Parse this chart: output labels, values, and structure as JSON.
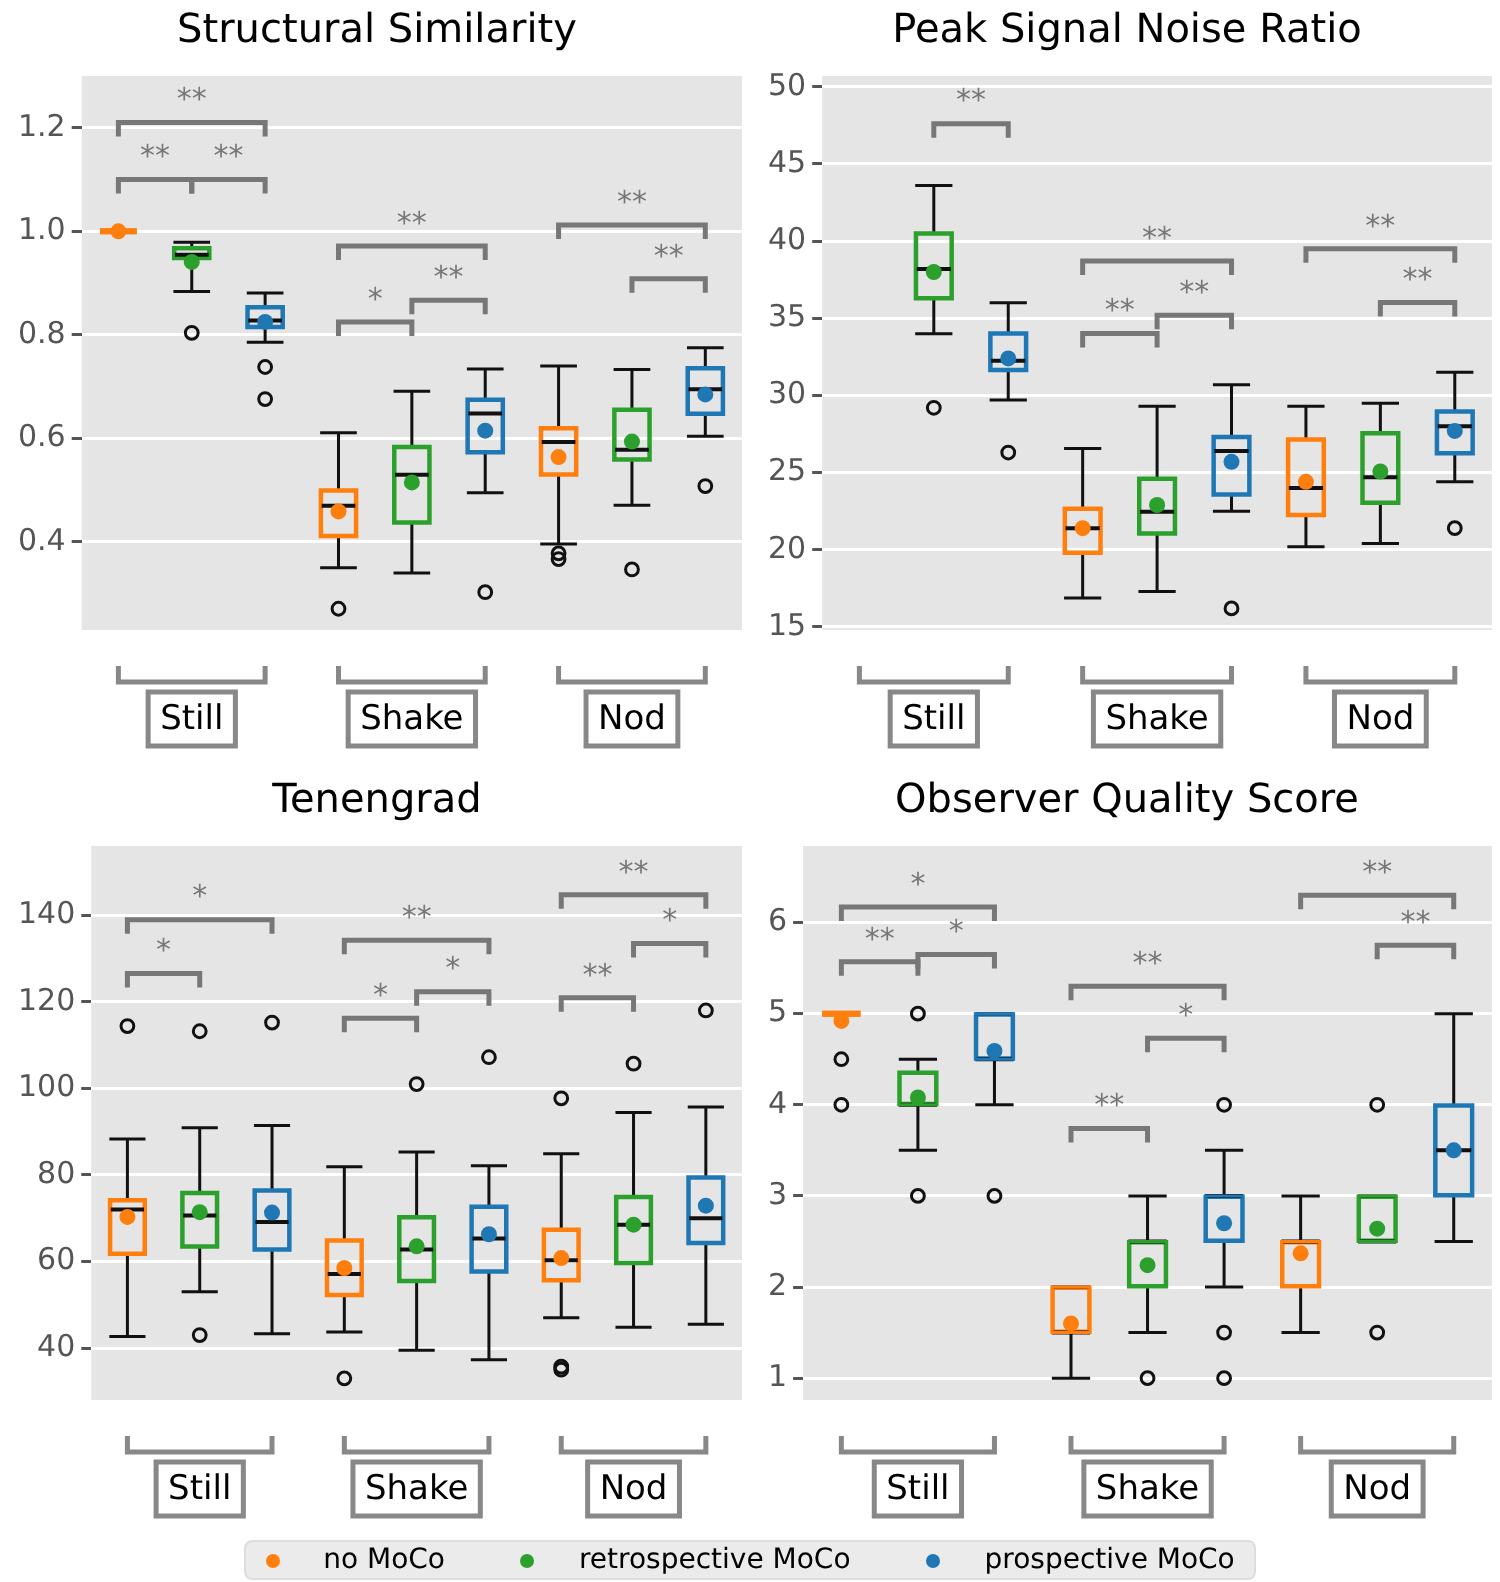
{
  "chart_data": [
    {
      "type": "box",
      "title": "Structural Similarity",
      "categories": [
        "Still",
        "Shake",
        "Nod"
      ],
      "ylim": [
        0.23,
        1.3
      ],
      "yticks": [
        {
          "value": 0.4,
          "label": "0.4"
        },
        {
          "value": 0.6,
          "label": "0.6"
        },
        {
          "value": 0.8,
          "label": "0.8"
        },
        {
          "value": 1.0,
          "label": "1.0"
        },
        {
          "value": 1.2,
          "label": "1.2"
        }
      ],
      "grid": "y",
      "series": [
        {
          "color": "#ff7f0e",
          "boxes": [
            {
              "low": 1.0,
              "q1": 1.0,
              "median": 1.0,
              "q3": 1.0,
              "high": 1.0,
              "mean": 1.0
            },
            {
              "low": 0.35,
              "q1": 0.41,
              "median": 0.47,
              "q3": 0.501,
              "high": 0.611,
              "mean": 0.459,
              "outliers": [
                0.271
              ]
            },
            {
              "low": 0.396,
              "q1": 0.529,
              "median": 0.593,
              "q3": 0.621,
              "high": 0.74,
              "mean": 0.564,
              "outliers": [
                0.378,
                0.367
              ]
            }
          ]
        },
        {
          "color": "#2ca02c",
          "boxes": [
            {
              "low": 0.884,
              "q1": 0.947,
              "median": 0.955,
              "q3": 0.969,
              "high": 0.979,
              "mean": 0.941,
              "outliers": [
                0.804
              ]
            },
            {
              "low": 0.34,
              "q1": 0.436,
              "median": 0.53,
              "q3": 0.585,
              "high": 0.691,
              "mean": 0.515
            },
            {
              "low": 0.471,
              "q1": 0.558,
              "median": 0.578,
              "q3": 0.657,
              "high": 0.733,
              "mean": 0.594,
              "outliers": [
                0.347
              ]
            }
          ]
        },
        {
          "color": "#1f77b4",
          "boxes": [
            {
              "low": 0.786,
              "q1": 0.814,
              "median": 0.828,
              "q3": 0.855,
              "high": 0.881,
              "mean": 0.825,
              "outliers": [
                0.738,
                0.676
              ]
            },
            {
              "low": 0.495,
              "q1": 0.572,
              "median": 0.648,
              "q3": 0.676,
              "high": 0.734,
              "mean": 0.615,
              "outliers": [
                0.303
              ]
            },
            {
              "low": 0.604,
              "q1": 0.646,
              "median": 0.695,
              "q3": 0.737,
              "high": 0.775,
              "mean": 0.685,
              "outliers": [
                0.508
              ]
            }
          ]
        }
      ],
      "annotations": [
        "**",
        "**",
        "**",
        "**",
        "*",
        "**",
        "**",
        "**"
      ]
    },
    {
      "type": "box",
      "title": "Peak Signal Noise Ratio",
      "categories": [
        "Still",
        "Shake",
        "Nod"
      ],
      "ylim": [
        14.8,
        50.7
      ],
      "yticks": [
        15,
        20,
        25,
        30,
        35,
        40,
        45,
        50
      ],
      "grid": "y",
      "series": [
        {
          "color": "#ff7f0e",
          "boxes": [
            null,
            {
              "low": 16.87,
              "q1": 19.76,
              "median": 21.4,
              "q3": 22.7,
              "high": 26.56,
              "mean": 21.4
            },
            {
              "low": 20.2,
              "q1": 22.2,
              "median": 24.0,
              "q3": 27.2,
              "high": 29.3,
              "mean": 24.4
            }
          ]
        },
        {
          "color": "#2ca02c",
          "boxes": [
            {
              "low": 34.0,
              "q1": 36.25,
              "median": 38.2,
              "q3": 40.54,
              "high": 43.6,
              "mean": 38.0,
              "outliers": [
                29.2
              ]
            },
            {
              "low": 17.3,
              "q1": 21.0,
              "median": 22.46,
              "q3": 24.65,
              "high": 29.3,
              "mean": 22.9
            },
            {
              "low": 20.4,
              "q1": 23.0,
              "median": 24.7,
              "q3": 27.6,
              "high": 29.5,
              "mean": 25.07
            }
          ]
        },
        {
          "color": "#1f77b4",
          "boxes": [
            {
              "low": 29.7,
              "q1": 31.6,
              "median": 32.25,
              "q3": 34.06,
              "high": 36.0,
              "mean": 32.4,
              "outliers": [
                26.3
              ]
            },
            {
              "low": 22.5,
              "q1": 23.53,
              "median": 26.4,
              "q3": 27.35,
              "high": 30.7,
              "mean": 25.7,
              "outliers": [
                16.2
              ]
            },
            {
              "low": 24.4,
              "q1": 26.2,
              "median": 28.0,
              "q3": 29.0,
              "high": 31.5,
              "mean": 27.7,
              "outliers": [
                21.4
              ]
            }
          ]
        }
      ],
      "annotations": [
        "**",
        "**",
        "**",
        "**",
        "**",
        "**"
      ]
    },
    {
      "type": "box",
      "title": "Tenengrad",
      "categories": [
        "Still",
        "Shake",
        "Nod"
      ],
      "ylim": [
        28,
        156
      ],
      "yticks": [
        40,
        60,
        80,
        100,
        120,
        140
      ],
      "grid": "y",
      "series": [
        {
          "color": "#ff7f0e",
          "boxes": [
            {
              "low": 42.7,
              "q1": 61.6,
              "median": 72.0,
              "q3": 74.3,
              "high": 88.3,
              "mean": 70.3,
              "outliers": [
                114.4
              ]
            },
            {
              "low": 43.7,
              "q1": 52.1,
              "median": 57.1,
              "q3": 65.0,
              "high": 81.9,
              "mean": 58.5,
              "outliers": [
                33.0
              ]
            },
            {
              "low": 47.0,
              "q1": 55.5,
              "median": 60.3,
              "q3": 67.5,
              "high": 84.9,
              "mean": 60.8,
              "outliers": [
                97.7,
                35.7,
                35.0
              ]
            }
          ]
        },
        {
          "color": "#2ca02c",
          "boxes": [
            {
              "low": 53.0,
              "q1": 63.3,
              "median": 70.6,
              "q3": 76.0,
              "high": 90.9,
              "mean": 71.4,
              "outliers": [
                113.2,
                43.0
              ]
            },
            {
              "low": 39.5,
              "q1": 55.3,
              "median": 62.8,
              "q3": 70.4,
              "high": 85.3,
              "mean": 63.5,
              "outliers": [
                101
              ]
            },
            {
              "low": 44.8,
              "q1": 59.5,
              "median": 68.5,
              "q3": 75.1,
              "high": 94.4,
              "mean": 68.5,
              "outliers": [
                105.7
              ]
            }
          ]
        },
        {
          "color": "#1f77b4",
          "boxes": [
            {
              "low": 43.3,
              "q1": 62.6,
              "median": 69.1,
              "q3": 76.6,
              "high": 91.4,
              "mean": 71.3,
              "outliers": [
                115.2
              ]
            },
            {
              "low": 37.3,
              "q1": 57.5,
              "median": 65.3,
              "q3": 72.8,
              "high": 82.1,
              "mean": 66.3,
              "outliers": [
                107.2
              ]
            },
            {
              "low": 45.5,
              "q1": 64.1,
              "median": 70.0,
              "q3": 79.6,
              "high": 95.7,
              "mean": 72.9,
              "outliers": [
                118.0
              ]
            }
          ]
        }
      ],
      "annotations": [
        "*",
        "*",
        "**",
        "*",
        "*",
        "**",
        "*",
        "**"
      ]
    },
    {
      "type": "box",
      "title": "Observer Quality Score",
      "categories": [
        "Still",
        "Shake",
        "Nod"
      ],
      "ylim": [
        0.76,
        6.84
      ],
      "yticks": [
        1,
        2,
        3,
        4,
        5,
        6
      ],
      "grid": "y",
      "legend": "bottom",
      "series": [
        {
          "name": "no MoCo",
          "color": "#ff7f0e",
          "boxes": [
            {
              "low": 5.0,
              "q1": 5.0,
              "median": 5.0,
              "q3": 5.0,
              "high": 5.0,
              "mean": 4.92,
              "outliers": [
                4.5,
                4.0
              ]
            },
            {
              "low": 1.0,
              "q1": 1.5,
              "median": 1.5,
              "q3": 2.0,
              "high": 2.0,
              "mean": 1.6
            },
            {
              "low": 1.5,
              "q1": 2.0,
              "median": 2.5,
              "q3": 2.5,
              "high": 3.0,
              "mean": 2.37
            }
          ]
        },
        {
          "name": "retrospective MoCo",
          "color": "#2ca02c",
          "boxes": [
            {
              "low": 3.5,
              "q1": 4.0,
              "median": 4.0,
              "q3": 4.36,
              "high": 4.5,
              "mean": 4.08,
              "outliers": [
                5.0,
                3.0
              ]
            },
            {
              "low": 1.5,
              "q1": 2.0,
              "median": 2.5,
              "q3": 2.5,
              "high": 3.0,
              "mean": 2.24,
              "outliers": [
                1.0
              ]
            },
            {
              "low": 2.5,
              "q1": 2.5,
              "median": 2.5,
              "q3": 3.0,
              "high": 3.0,
              "mean": 2.64,
              "outliers": [
                4.0,
                1.5
              ]
            }
          ]
        },
        {
          "name": "prospective MoCo",
          "color": "#1f77b4",
          "boxes": [
            {
              "low": 4.0,
              "q1": 4.5,
              "median": 4.5,
              "q3": 5.0,
              "high": 5.0,
              "mean": 4.59,
              "outliers": [
                3.0
              ]
            },
            {
              "low": 2.0,
              "q1": 2.5,
              "median": 3.0,
              "q3": 3.0,
              "high": 3.5,
              "mean": 2.7,
              "outliers": [
                4.0,
                1.5,
                1.0
              ]
            },
            {
              "low": 2.5,
              "q1": 3.0,
              "median": 3.5,
              "q3": 4.0,
              "high": 5.0,
              "mean": 3.5
            }
          ]
        }
      ],
      "annotations": [
        "*",
        "**",
        "*",
        "**",
        "**",
        "*",
        "**",
        "**"
      ]
    }
  ]
}
